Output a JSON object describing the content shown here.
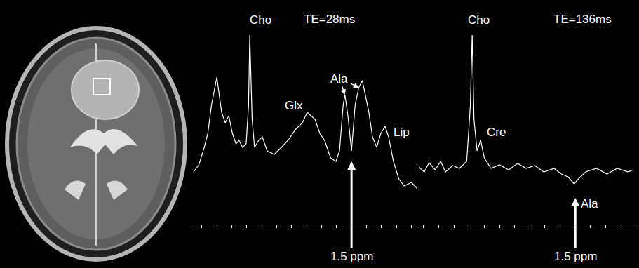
{
  "chart_data": [
    {
      "type": "line",
      "title": "TE=28ms",
      "color": "#ffffff",
      "x": [
        4.14,
        4.05,
        3.96,
        3.9,
        3.84,
        3.75,
        3.67,
        3.61,
        3.55,
        3.49,
        3.43,
        3.38,
        3.32,
        3.26,
        3.22,
        3.2,
        3.16,
        3.12,
        3.05,
        2.99,
        2.91,
        2.79,
        2.67,
        2.56,
        2.44,
        2.32,
        2.24,
        2.17,
        2.11,
        2.03,
        1.95,
        1.85,
        1.76,
        1.7,
        1.64,
        1.61,
        1.56,
        1.5,
        1.44,
        1.38,
        1.32,
        1.27,
        1.21,
        1.15,
        1.08,
        1.01,
        0.94,
        0.88,
        0.8,
        0.71,
        0.62,
        0.5,
        0.41
      ],
      "values": [
        30,
        40,
        65,
        85,
        125,
        165,
        115,
        100,
        110,
        85,
        70,
        75,
        65,
        70,
        125,
        225,
        105,
        65,
        75,
        80,
        60,
        55,
        65,
        75,
        90,
        100,
        115,
        110,
        105,
        85,
        75,
        50,
        45,
        60,
        125,
        140,
        110,
        60,
        125,
        150,
        160,
        140,
        115,
        80,
        65,
        85,
        95,
        80,
        45,
        20,
        10,
        15,
        7
      ],
      "xlim": [
        4.15,
        0.4
      ],
      "xticks": [
        4,
        3.75,
        3.5,
        3.25,
        3,
        2.75,
        2.5,
        2.25,
        2,
        1.75,
        1.5,
        1.25,
        1,
        0.75,
        0.5
      ],
      "ylim": [
        -45,
        240
      ],
      "tick_labels": false,
      "grid": false,
      "annotations": [
        {
          "text": "Cho",
          "x": 3.2,
          "y": 225
        },
        {
          "text": "Glx",
          "x": 2.24,
          "y": 115
        },
        {
          "text": "Ala",
          "x": [
            1.61,
            1.38
          ],
          "y": [
            140,
            150
          ]
        },
        {
          "text": "Lip",
          "x": 0.94,
          "y": 95
        },
        {
          "text": "1.5 ppm",
          "x": 1.5,
          "y": 45
        }
      ]
    },
    {
      "type": "line",
      "title": "TE=136ms",
      "color": "#ffffff",
      "x": [
        4.08,
        3.99,
        3.91,
        3.81,
        3.72,
        3.64,
        3.52,
        3.41,
        3.29,
        3.23,
        3.2,
        3.17,
        3.12,
        3.06,
        3.0,
        2.89,
        2.75,
        2.6,
        2.45,
        2.31,
        2.17,
        2.02,
        1.85,
        1.73,
        1.62,
        1.52,
        1.45,
        1.33,
        1.15,
        0.98,
        0.81,
        0.63,
        0.55
      ],
      "values": [
        37,
        30,
        43,
        33,
        45,
        30,
        39,
        35,
        45,
        125,
        225,
        105,
        60,
        75,
        50,
        35,
        40,
        33,
        42,
        35,
        39,
        30,
        35,
        27,
        23,
        13,
        20,
        30,
        35,
        27,
        35,
        30,
        33
      ],
      "xlim": [
        4.08,
        0.52
      ],
      "xticks": [
        4,
        3.75,
        3.5,
        3.25,
        3,
        2.75,
        2.5,
        2.25,
        2,
        1.75,
        1.5,
        1.25,
        1,
        0.75
      ],
      "ylim": [
        -45,
        240
      ],
      "tick_labels": false,
      "grid": false,
      "annotations": [
        {
          "text": "Cho",
          "x": 3.2,
          "y": 225
        },
        {
          "text": "Cre",
          "x": 3.06,
          "y": 75
        },
        {
          "text": "Ala",
          "x": 1.52,
          "y": 13
        },
        {
          "text": "1.5 ppm",
          "x": 1.5,
          "y": -7
        }
      ]
    }
  ]
}
